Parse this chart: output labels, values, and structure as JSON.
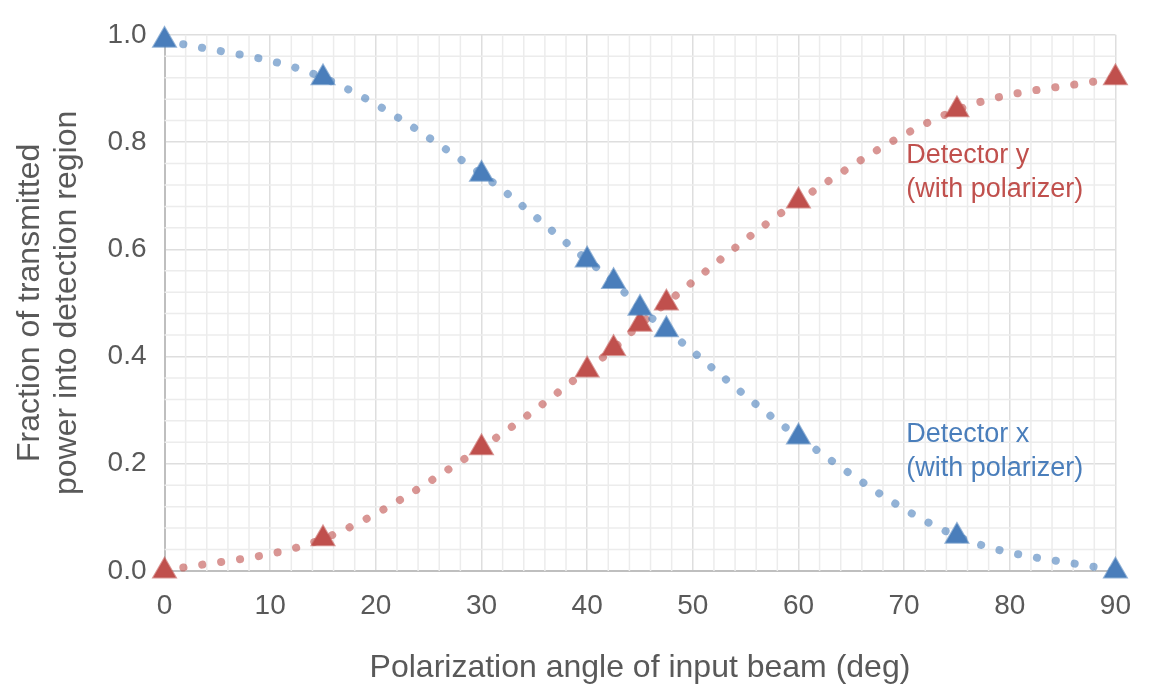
{
  "chart_data": {
    "type": "line",
    "xlabel": "Polarization angle of input beam (deg)",
    "ylabel": "Fraction of transmitted\npower into detection region",
    "x": [
      0,
      15,
      30,
      40,
      42.5,
      45,
      47.5,
      60,
      75,
      90
    ],
    "series": [
      {
        "name": "Detector x\n(with polarizer)",
        "color": "#4a7ebb",
        "values": [
          0.99,
          0.92,
          0.74,
          0.58,
          0.54,
          0.49,
          0.45,
          0.25,
          0.065,
          0
        ]
      },
      {
        "name": "Detector y\n(with polarizer)",
        "color": "#c0504d",
        "values": [
          0,
          0.06,
          0.23,
          0.375,
          0.415,
          0.46,
          0.5,
          0.69,
          0.86,
          0.92
        ]
      }
    ],
    "xlim": [
      0,
      90
    ],
    "xticks": [
      0,
      10,
      20,
      30,
      40,
      50,
      60,
      70,
      80,
      90
    ],
    "ylim": [
      0,
      1
    ],
    "yticks": [
      {
        "value": 0,
        "label": "0.0"
      },
      {
        "value": 0.2,
        "label": "0.2"
      },
      {
        "value": 0.4,
        "label": "0.4"
      },
      {
        "value": 0.6,
        "label": "0.6"
      },
      {
        "value": 0.8,
        "label": "0.8"
      },
      {
        "value": 1,
        "label": "1.0"
      }
    ],
    "grid": true,
    "legend": false,
    "marker": "triangle",
    "line_style": "dotted"
  }
}
